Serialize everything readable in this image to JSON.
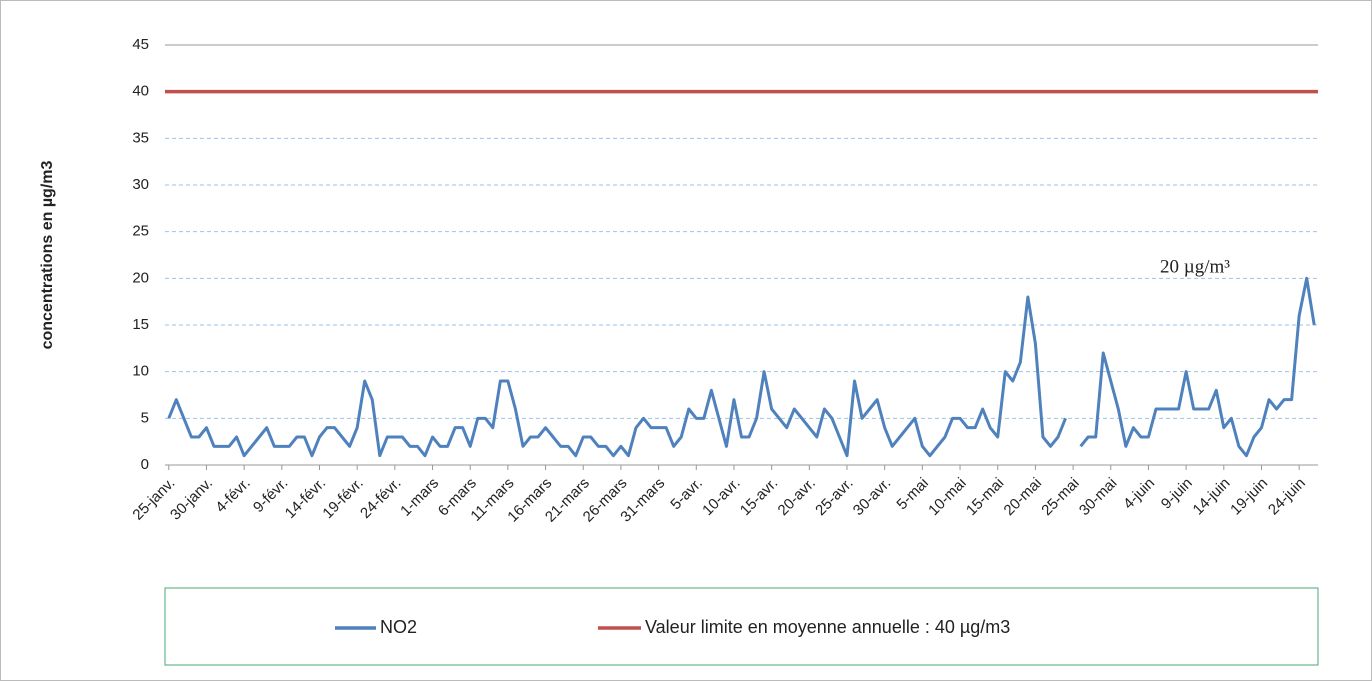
{
  "chart_data": {
    "type": "line",
    "ylabel": "concentrations  en  µg/m3",
    "categories": [
      "25-janv.",
      null,
      null,
      null,
      null,
      "30-janv.",
      null,
      null,
      null,
      null,
      "4-févr.",
      null,
      null,
      null,
      null,
      "9-févr.",
      null,
      null,
      null,
      null,
      "14-févr.",
      null,
      null,
      null,
      null,
      "19-févr.",
      null,
      null,
      null,
      null,
      "24-févr.",
      null,
      null,
      null,
      null,
      "1-mars",
      null,
      null,
      null,
      null,
      "6-mars",
      null,
      null,
      null,
      null,
      "11-mars",
      null,
      null,
      null,
      null,
      "16-mars",
      null,
      null,
      null,
      null,
      "21-mars",
      null,
      null,
      null,
      null,
      "26-mars",
      null,
      null,
      null,
      null,
      "31-mars",
      null,
      null,
      null,
      null,
      "5-avr.",
      null,
      null,
      null,
      null,
      "10-avr.",
      null,
      null,
      null,
      null,
      "15-avr.",
      null,
      null,
      null,
      null,
      "20-avr.",
      null,
      null,
      null,
      null,
      "25-avr.",
      null,
      null,
      null,
      null,
      "30-avr.",
      null,
      null,
      null,
      null,
      "5-mai",
      null,
      null,
      null,
      null,
      "10-mai",
      null,
      null,
      null,
      null,
      "15-mai",
      null,
      null,
      null,
      null,
      "20-mai",
      null,
      null,
      null,
      null,
      "25-mai",
      null,
      null,
      null,
      null,
      "30-mai",
      null,
      null,
      null,
      null,
      "4-juin",
      null,
      null,
      null,
      null,
      "9-juin",
      null,
      null,
      null,
      null,
      "14-juin",
      null,
      null,
      null,
      null,
      "19-juin",
      null,
      null,
      null,
      null,
      "24-juin",
      null,
      null
    ],
    "series": [
      {
        "name": "NO2",
        "color": "#4f81bd",
        "values": [
          5,
          7,
          5,
          3,
          3,
          4,
          2,
          2,
          2,
          3,
          1,
          2,
          3,
          4,
          2,
          2,
          2,
          3,
          3,
          1,
          3,
          4,
          4,
          3,
          2,
          4,
          9,
          7,
          1,
          3,
          3,
          3,
          2,
          2,
          1,
          3,
          2,
          2,
          4,
          4,
          2,
          5,
          5,
          4,
          9,
          9,
          6,
          2,
          3,
          3,
          4,
          3,
          2,
          2,
          1,
          3,
          3,
          2,
          2,
          1,
          2,
          1,
          4,
          5,
          4,
          4,
          4,
          2,
          3,
          6,
          5,
          5,
          8,
          5,
          2,
          7,
          3,
          3,
          5,
          10,
          6,
          5,
          4,
          6,
          5,
          4,
          3,
          6,
          5,
          3,
          1,
          9,
          5,
          6,
          7,
          4,
          2,
          3,
          4,
          5,
          2,
          1,
          2,
          3,
          5,
          5,
          4,
          4,
          6,
          4,
          3,
          10,
          9,
          11,
          18,
          13,
          3,
          2,
          3,
          5,
          null,
          2,
          3,
          3,
          12,
          9,
          6,
          2,
          4,
          3,
          3,
          6,
          6,
          6,
          6,
          10,
          6,
          6,
          6,
          8,
          4,
          5,
          2,
          1,
          3,
          4,
          7,
          6,
          7,
          7,
          16,
          20,
          15
        ]
      }
    ],
    "hline": {
      "name": "Valeur limite en moyenne annuelle : 40 µg/m3",
      "value": 40,
      "color": "#c0504d"
    },
    "annotation": {
      "text": "20 µg/m³",
      "color": "#2e75b6"
    },
    "ylim": [
      0,
      45
    ],
    "yticks": [
      0,
      5,
      10,
      15,
      20,
      25,
      30,
      35,
      40,
      45
    ],
    "grid": true
  }
}
